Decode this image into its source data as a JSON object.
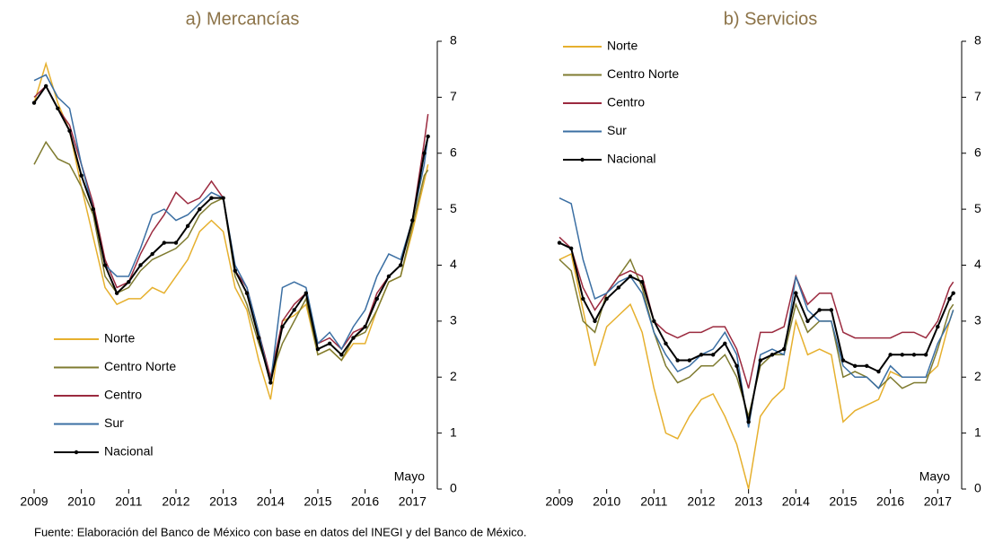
{
  "chart_data": [
    {
      "type": "line",
      "title": "a) Mercancías",
      "annotation": "Mayo",
      "legend": "lower left",
      "x": [
        2009,
        2009.25,
        2009.5,
        2009.75,
        2010,
        2010.25,
        2010.5,
        2010.75,
        2011,
        2011.25,
        2011.5,
        2011.75,
        2012,
        2012.25,
        2012.5,
        2012.75,
        2013,
        2013.25,
        2013.5,
        2013.75,
        2014,
        2014.25,
        2014.5,
        2014.75,
        2015,
        2015.25,
        2015.5,
        2015.75,
        2016,
        2016.25,
        2016.5,
        2016.75,
        2017,
        2017.25,
        2017.33
      ],
      "xlim": [
        2009,
        2017.45
      ],
      "xticks": [
        2009,
        2010,
        2011,
        2012,
        2013,
        2014,
        2015,
        2016,
        2017
      ],
      "ylim": [
        0,
        8
      ],
      "yticks": [
        0,
        1,
        2,
        3,
        4,
        5,
        6,
        7,
        8
      ],
      "series": [
        {
          "name": "Norte",
          "color": "#e6b02e",
          "values": [
            6.9,
            7.6,
            6.9,
            6.4,
            5.4,
            4.5,
            3.6,
            3.3,
            3.4,
            3.4,
            3.6,
            3.5,
            3.8,
            4.1,
            4.6,
            4.8,
            4.6,
            3.6,
            3.2,
            2.3,
            1.6,
            3.0,
            3.1,
            3.3,
            2.4,
            2.5,
            2.3,
            2.6,
            2.6,
            3.2,
            3.7,
            3.8,
            4.6,
            5.5,
            5.8
          ]
        },
        {
          "name": "Centro Norte",
          "color": "#7f7b30",
          "values": [
            5.8,
            6.2,
            5.9,
            5.8,
            5.4,
            4.9,
            3.8,
            3.5,
            3.6,
            3.9,
            4.1,
            4.2,
            4.3,
            4.5,
            4.9,
            5.1,
            5.2,
            3.8,
            3.3,
            2.6,
            2.0,
            2.6,
            3.0,
            3.4,
            2.4,
            2.5,
            2.3,
            2.7,
            2.8,
            3.2,
            3.7,
            3.8,
            4.7,
            5.6,
            5.7
          ]
        },
        {
          "name": "Centro",
          "color": "#9b2a3f",
          "values": [
            7.0,
            7.2,
            6.8,
            6.5,
            5.8,
            5.1,
            4.1,
            3.6,
            3.7,
            4.2,
            4.6,
            4.9,
            5.3,
            5.1,
            5.2,
            5.5,
            5.2,
            3.9,
            3.6,
            2.8,
            2.0,
            3.0,
            3.3,
            3.5,
            2.6,
            2.7,
            2.5,
            2.8,
            2.9,
            3.5,
            3.8,
            4.0,
            4.8,
            6.2,
            6.7
          ]
        },
        {
          "name": "Sur",
          "color": "#3b6fa3",
          "values": [
            7.3,
            7.4,
            7.0,
            6.8,
            5.8,
            5.0,
            4.0,
            3.8,
            3.8,
            4.3,
            4.9,
            5.0,
            4.8,
            4.9,
            5.1,
            5.3,
            5.2,
            4.0,
            3.6,
            2.8,
            1.9,
            3.6,
            3.7,
            3.6,
            2.6,
            2.8,
            2.5,
            2.9,
            3.2,
            3.8,
            4.2,
            4.1,
            4.8,
            5.8,
            6.3
          ]
        },
        {
          "name": "Nacional",
          "color": "#000000",
          "markers": true,
          "values": [
            6.9,
            7.2,
            6.8,
            6.4,
            5.6,
            5.0,
            4.0,
            3.5,
            3.7,
            4.0,
            4.2,
            4.4,
            4.4,
            4.7,
            5.0,
            5.2,
            5.2,
            3.9,
            3.5,
            2.7,
            1.9,
            2.9,
            3.2,
            3.5,
            2.5,
            2.6,
            2.4,
            2.7,
            2.9,
            3.4,
            3.8,
            4.0,
            4.8,
            6.0,
            6.3
          ]
        }
      ]
    },
    {
      "type": "line",
      "title": "b) Servicios",
      "annotation": "Mayo",
      "legend": "upper left",
      "x": [
        2009,
        2009.25,
        2009.5,
        2009.75,
        2010,
        2010.25,
        2010.5,
        2010.75,
        2011,
        2011.25,
        2011.5,
        2011.75,
        2012,
        2012.25,
        2012.5,
        2012.75,
        2013,
        2013.25,
        2013.5,
        2013.75,
        2014,
        2014.25,
        2014.5,
        2014.75,
        2015,
        2015.25,
        2015.5,
        2015.75,
        2016,
        2016.25,
        2016.5,
        2016.75,
        2017,
        2017.25,
        2017.33
      ],
      "xlim": [
        2009,
        2017.45
      ],
      "xticks": [
        2009,
        2010,
        2011,
        2012,
        2013,
        2014,
        2015,
        2016,
        2017
      ],
      "ylim": [
        0,
        8
      ],
      "yticks": [
        0,
        1,
        2,
        3,
        4,
        5,
        6,
        7,
        8
      ],
      "series": [
        {
          "name": "Norte",
          "color": "#e6b02e",
          "values": [
            4.1,
            4.2,
            3.2,
            2.2,
            2.9,
            3.1,
            3.3,
            2.8,
            1.8,
            1.0,
            0.9,
            1.3,
            1.6,
            1.7,
            1.3,
            0.8,
            0.0,
            1.3,
            1.6,
            1.8,
            3.0,
            2.4,
            2.5,
            2.4,
            1.2,
            1.4,
            1.5,
            1.6,
            2.1,
            2.0,
            2.0,
            2.0,
            2.2,
            3.0,
            3.2
          ]
        },
        {
          "name": "Centro Norte",
          "color": "#7f7b30",
          "values": [
            4.1,
            3.9,
            3.0,
            2.8,
            3.5,
            3.8,
            4.1,
            3.6,
            2.8,
            2.2,
            1.9,
            2.0,
            2.2,
            2.2,
            2.4,
            2.0,
            1.3,
            2.2,
            2.4,
            2.4,
            3.3,
            2.8,
            3.0,
            3.0,
            2.0,
            2.1,
            2.0,
            1.8,
            2.0,
            1.8,
            1.9,
            1.9,
            2.5,
            3.2,
            3.3
          ]
        },
        {
          "name": "Centro",
          "color": "#9b2a3f",
          "values": [
            4.5,
            4.3,
            3.6,
            3.2,
            3.5,
            3.8,
            3.9,
            3.8,
            3.0,
            2.8,
            2.7,
            2.8,
            2.8,
            2.9,
            2.9,
            2.5,
            1.8,
            2.8,
            2.8,
            2.9,
            3.8,
            3.3,
            3.5,
            3.5,
            2.8,
            2.7,
            2.7,
            2.7,
            2.7,
            2.8,
            2.8,
            2.7,
            3.0,
            3.6,
            3.7
          ]
        },
        {
          "name": "Sur",
          "color": "#3b6fa3",
          "values": [
            5.2,
            5.1,
            4.1,
            3.4,
            3.5,
            3.7,
            3.8,
            3.5,
            2.8,
            2.4,
            2.1,
            2.2,
            2.4,
            2.5,
            2.8,
            2.4,
            1.1,
            2.4,
            2.5,
            2.4,
            3.8,
            3.2,
            3.0,
            3.0,
            2.2,
            2.0,
            2.0,
            1.8,
            2.2,
            2.0,
            2.0,
            2.0,
            2.6,
            3.0,
            3.2
          ]
        },
        {
          "name": "Nacional",
          "color": "#000000",
          "markers": true,
          "values": [
            4.4,
            4.3,
            3.4,
            3.0,
            3.4,
            3.6,
            3.8,
            3.7,
            3.0,
            2.6,
            2.3,
            2.3,
            2.4,
            2.4,
            2.6,
            2.2,
            1.2,
            2.3,
            2.4,
            2.5,
            3.5,
            3.0,
            3.2,
            3.2,
            2.3,
            2.2,
            2.2,
            2.1,
            2.4,
            2.4,
            2.4,
            2.4,
            2.9,
            3.4,
            3.5
          ]
        }
      ]
    }
  ],
  "footnote": "Fuente: Elaboración del Banco de México con base en datos del INEGI y del Banco de México."
}
